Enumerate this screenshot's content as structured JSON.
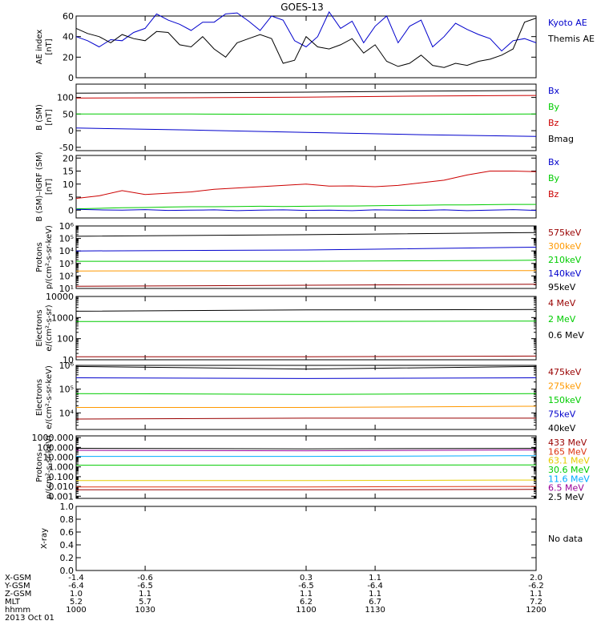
{
  "title": "GOES-13",
  "colors": {
    "black": "#000000",
    "blue": "#0000cc",
    "red": "#cc0000",
    "green": "#00cc00",
    "orange": "#ff9900",
    "darkred": "#990000",
    "cyan": "#00aaff",
    "yellow": "#e6cc00",
    "purple": "#990099",
    "salmon": "#dd3311"
  },
  "chart_data": [
    {
      "type": "line",
      "id": "ae",
      "ylabel": [
        "AE index",
        "[nT]"
      ],
      "ylim": [
        0,
        60
      ],
      "yticks": [
        0,
        20,
        40,
        60
      ],
      "scale": "linear",
      "xlim": [
        1000,
        1200
      ],
      "legend": [
        {
          "label": "Kyoto AE",
          "color": "#0000cc"
        },
        {
          "label": "Themis AE",
          "color": "#000000"
        }
      ],
      "series": [
        {
          "name": "Kyoto AE",
          "color": "#0000cc",
          "x": [
            1000,
            1005,
            1010,
            1015,
            1020,
            1025,
            1030,
            1035,
            1040,
            1045,
            1050,
            1055,
            1060,
            1065,
            1070,
            1075,
            1080,
            1085,
            1090,
            1095,
            1100,
            1105,
            1110,
            1115,
            1120,
            1125,
            1130,
            1135,
            1140,
            1145,
            1150,
            1155,
            1160,
            1165,
            1170,
            1175,
            1180,
            1185,
            1190,
            1195,
            1200
          ],
          "y": [
            40,
            36,
            30,
            37,
            36,
            44,
            48,
            62,
            56,
            52,
            46,
            54,
            54,
            62,
            63,
            55,
            46,
            60,
            56,
            36,
            30,
            40,
            64,
            48,
            55,
            34,
            50,
            60,
            34,
            50,
            56,
            30,
            40,
            53,
            47,
            42,
            38,
            26,
            36,
            38,
            34
          ]
        },
        {
          "name": "Themis AE",
          "color": "#000000",
          "x": [
            1000,
            1005,
            1010,
            1015,
            1020,
            1025,
            1030,
            1035,
            1040,
            1045,
            1050,
            1055,
            1060,
            1065,
            1070,
            1075,
            1080,
            1085,
            1090,
            1095,
            1100,
            1105,
            1110,
            1115,
            1120,
            1125,
            1130,
            1135,
            1140,
            1145,
            1150,
            1155,
            1160,
            1165,
            1170,
            1175,
            1180,
            1185,
            1190,
            1195,
            1200
          ],
          "y": [
            48,
            43,
            40,
            34,
            42,
            38,
            36,
            45,
            44,
            32,
            30,
            40,
            28,
            20,
            34,
            38,
            42,
            38,
            14,
            17,
            40,
            30,
            28,
            32,
            38,
            24,
            32,
            16,
            11,
            14,
            22,
            12,
            10,
            14,
            12,
            16,
            18,
            22,
            28,
            54,
            58
          ]
        }
      ]
    },
    {
      "type": "line",
      "id": "bsm",
      "ylabel": [
        "B (SM)",
        "[nT]"
      ],
      "ylim": [
        -60,
        140
      ],
      "yticks": [
        -50,
        0,
        50,
        100
      ],
      "scale": "linear",
      "xlim": [
        1000,
        1200
      ],
      "legend": [
        {
          "label": "Bx",
          "color": "#0000cc"
        },
        {
          "label": "By",
          "color": "#00cc00"
        },
        {
          "label": "Bz",
          "color": "#cc0000"
        },
        {
          "label": "Bmag",
          "color": "#000000"
        }
      ],
      "series": [
        {
          "name": "Bmag",
          "color": "#000000",
          "x": [
            1000,
            1050,
            1100,
            1150,
            1200
          ],
          "y": [
            113,
            114,
            116,
            119,
            121
          ]
        },
        {
          "name": "Bz",
          "color": "#cc0000",
          "x": [
            1000,
            1050,
            1100,
            1150,
            1200
          ],
          "y": [
            98,
            99,
            101,
            104,
            106
          ]
        },
        {
          "name": "By",
          "color": "#00cc00",
          "x": [
            1000,
            1050,
            1100,
            1150,
            1200
          ],
          "y": [
            50,
            50,
            49,
            49,
            50
          ]
        },
        {
          "name": "Bx",
          "color": "#0000cc",
          "x": [
            1000,
            1050,
            1100,
            1150,
            1200
          ],
          "y": [
            8,
            2,
            -5,
            -12,
            -17
          ]
        }
      ]
    },
    {
      "type": "line",
      "id": "bigrf",
      "ylabel": [
        "B (SM)–IGRF (SM)",
        "[nT]"
      ],
      "ylim": [
        -3,
        21
      ],
      "yticks": [
        0,
        5,
        10,
        15,
        20
      ],
      "scale": "linear",
      "xlim": [
        1000,
        1200
      ],
      "legend": [
        {
          "label": "Bx",
          "color": "#0000cc"
        },
        {
          "label": "By",
          "color": "#00cc00"
        },
        {
          "label": "Bz",
          "color": "#cc0000"
        }
      ],
      "series": [
        {
          "name": "Bz",
          "color": "#cc0000",
          "x": [
            1000,
            1010,
            1020,
            1030,
            1040,
            1050,
            1060,
            1070,
            1080,
            1090,
            1100,
            1110,
            1120,
            1130,
            1140,
            1150,
            1160,
            1170,
            1180,
            1190,
            1200
          ],
          "y": [
            4.5,
            5.5,
            7.5,
            6,
            6.5,
            7,
            8,
            8.5,
            9,
            9.5,
            10,
            9.2,
            9.3,
            9,
            9.5,
            10.5,
            11.5,
            13.5,
            15,
            15,
            14.8
          ]
        },
        {
          "name": "By",
          "color": "#00cc00",
          "x": [
            1000,
            1010,
            1020,
            1030,
            1040,
            1050,
            1060,
            1070,
            1080,
            1090,
            1100,
            1110,
            1120,
            1130,
            1140,
            1150,
            1160,
            1170,
            1180,
            1190,
            1200
          ],
          "y": [
            0.5,
            0.7,
            0.9,
            1,
            1.2,
            1.3,
            1.3,
            1.4,
            1.5,
            1.4,
            1.5,
            1.6,
            1.6,
            1.7,
            1.8,
            1.9,
            2,
            2,
            2.1,
            2.2,
            2.2
          ]
        },
        {
          "name": "Bx",
          "color": "#0000cc",
          "x": [
            1000,
            1010,
            1020,
            1030,
            1040,
            1050,
            1060,
            1070,
            1080,
            1090,
            1100,
            1110,
            1120,
            1130,
            1140,
            1150,
            1160,
            1170,
            1180,
            1190,
            1200
          ],
          "y": [
            0.3,
            0.1,
            0,
            0.2,
            -0.1,
            0,
            0.1,
            -0.2,
            0,
            0.1,
            -0.1,
            0,
            -0.2,
            0.1,
            0,
            -0.1,
            0.1,
            -0.2,
            0,
            0.2,
            -0.1
          ]
        }
      ]
    },
    {
      "type": "line",
      "id": "protons1",
      "ylabel": [
        "Protons",
        "p/(cm²-s-sr-keV)"
      ],
      "ylim": [
        10,
        1000000
      ],
      "yticks": [
        10,
        100,
        1000,
        10000,
        100000,
        1000000
      ],
      "yticklabels": [
        "10¹",
        "10²",
        "10³",
        "10⁴",
        "10⁵",
        "10⁶"
      ],
      "scale": "log",
      "xlim": [
        1000,
        1200
      ],
      "legend": [
        {
          "label": "575keV",
          "color": "#990000"
        },
        {
          "label": "300keV",
          "color": "#ff9900"
        },
        {
          "label": "210keV",
          "color": "#00cc00"
        },
        {
          "label": "140keV",
          "color": "#0000cc"
        },
        {
          "label": "95keV",
          "color": "#000000"
        }
      ],
      "series": [
        {
          "name": "95keV",
          "color": "#000000",
          "x": [
            1000,
            1100,
            1200
          ],
          "y": [
            150000,
            200000,
            300000
          ]
        },
        {
          "name": "140keV",
          "color": "#0000cc",
          "x": [
            1000,
            1100,
            1200
          ],
          "y": [
            10000,
            12000,
            20000
          ]
        },
        {
          "name": "210keV",
          "color": "#00cc00",
          "x": [
            1000,
            1100,
            1200
          ],
          "y": [
            1500,
            1500,
            1800
          ]
        },
        {
          "name": "300keV",
          "color": "#ff9900",
          "x": [
            1000,
            1100,
            1200
          ],
          "y": [
            250,
            260,
            270
          ]
        },
        {
          "name": "575keV",
          "color": "#990000",
          "x": [
            1000,
            1100,
            1200
          ],
          "y": [
            15,
            18,
            22
          ]
        }
      ]
    },
    {
      "type": "line",
      "id": "electrons1",
      "ylabel": [
        "Electrons",
        "e/(cm²-s-sr)"
      ],
      "ylim": [
        10,
        10000
      ],
      "yticks": [
        10,
        100,
        1000,
        10000
      ],
      "yticklabels": [
        "10",
        "100",
        "1000",
        "10000"
      ],
      "scale": "log",
      "xlim": [
        1000,
        1200
      ],
      "legend": [
        {
          "label": "4 MeV",
          "color": "#990000"
        },
        {
          "label": "2 MeV",
          "color": "#00cc00"
        },
        {
          "label": "0.6 MeV",
          "color": "#000000"
        }
      ],
      "series": [
        {
          "name": "0.6 MeV",
          "color": "#000000",
          "x": [
            1000,
            1100,
            1200
          ],
          "y": [
            2000,
            2300,
            2400
          ]
        },
        {
          "name": "2 MeV",
          "color": "#00cc00",
          "x": [
            1000,
            1100,
            1200
          ],
          "y": [
            650,
            650,
            680
          ]
        },
        {
          "name": "4 MeV",
          "color": "#990000",
          "x": [
            1000,
            1100,
            1200
          ],
          "y": [
            14,
            14,
            15
          ]
        }
      ]
    },
    {
      "type": "line",
      "id": "electrons2",
      "ylabel": [
        "Electrons",
        "e/(cm²-s-sr-keV)"
      ],
      "ylim": [
        2000,
        1000000
      ],
      "yticks": [
        10000,
        100000,
        1000000
      ],
      "yticklabels": [
        "10⁴",
        "10⁵",
        "10⁶"
      ],
      "scale": "log",
      "xlim": [
        1000,
        1200
      ],
      "legend": [
        {
          "label": "475keV",
          "color": "#990000"
        },
        {
          "label": "275keV",
          "color": "#ff9900"
        },
        {
          "label": "150keV",
          "color": "#00cc00"
        },
        {
          "label": "75keV",
          "color": "#0000cc"
        },
        {
          "label": "40keV",
          "color": "#000000"
        }
      ],
      "series": [
        {
          "name": "40keV",
          "color": "#000000",
          "x": [
            1000,
            1100,
            1200
          ],
          "y": [
            900000,
            700000,
            900000
          ]
        },
        {
          "name": "75keV",
          "color": "#0000cc",
          "x": [
            1000,
            1100,
            1200
          ],
          "y": [
            300000,
            280000,
            300000
          ]
        },
        {
          "name": "150keV",
          "color": "#00cc00",
          "x": [
            1000,
            1100,
            1200
          ],
          "y": [
            65000,
            60000,
            65000
          ]
        },
        {
          "name": "275keV",
          "color": "#ff9900",
          "x": [
            1000,
            1100,
            1200
          ],
          "y": [
            17000,
            17000,
            19000
          ]
        },
        {
          "name": "475keV",
          "color": "#990000",
          "x": [
            1000,
            1100,
            1200
          ],
          "y": [
            5500,
            6000,
            6000
          ]
        }
      ]
    },
    {
      "type": "line",
      "id": "protons2",
      "ylabel": [
        "Protons",
        "p/(cm²-s-sr-keV)"
      ],
      "ylim": [
        0.0006,
        1500
      ],
      "yticks": [
        0.001,
        0.01,
        0.1,
        1,
        10,
        100,
        1000
      ],
      "yticklabels": [
        "0.001",
        "0.010",
        "0.100",
        "1.000",
        "10.000",
        "100.000",
        "1000.000"
      ],
      "scale": "log",
      "xlim": [
        1000,
        1200
      ],
      "legend": [
        {
          "label": "433 MeV",
          "color": "#990000"
        },
        {
          "label": "165 MeV",
          "color": "#dd3311"
        },
        {
          "label": "63.1 MeV",
          "color": "#e6cc00"
        },
        {
          "label": "30.6 MeV",
          "color": "#00cc00"
        },
        {
          "label": "11.6 MeV",
          "color": "#00aaff"
        },
        {
          "label": "6.5 MeV",
          "color": "#990099"
        },
        {
          "label": "2.5 MeV",
          "color": "#000000"
        }
      ],
      "series": [
        {
          "name": "2.5 MeV",
          "color": "#000000",
          "x": [
            1000,
            1100,
            1200
          ],
          "y": [
            80,
            70,
            80
          ]
        },
        {
          "name": "6.5 MeV",
          "color": "#990099",
          "x": [
            1000,
            1100,
            1200
          ],
          "y": [
            50,
            45,
            55
          ]
        },
        {
          "name": "11.6 MeV",
          "color": "#00aaff",
          "x": [
            1000,
            1100,
            1200
          ],
          "y": [
            12,
            12,
            14
          ]
        },
        {
          "name": "30.6 MeV",
          "color": "#00cc00",
          "x": [
            1000,
            1100,
            1200
          ],
          "y": [
            1.5,
            1.5,
            1.6
          ]
        },
        {
          "name": "63.1 MeV",
          "color": "#e6cc00",
          "x": [
            1000,
            1100,
            1200
          ],
          "y": [
            0.04,
            0.04,
            0.045
          ]
        },
        {
          "name": "165 MeV",
          "color": "#dd3311",
          "x": [
            1000,
            1100,
            1200
          ],
          "y": [
            0.009,
            0.009,
            0.01
          ]
        },
        {
          "name": "433 MeV",
          "color": "#990000",
          "x": [
            1000,
            1100,
            1200
          ],
          "y": [
            0.0045,
            0.0045,
            0.005
          ]
        }
      ]
    },
    {
      "type": "line",
      "id": "xray",
      "ylabel": [
        "X-ray"
      ],
      "ylim": [
        0,
        1
      ],
      "yticks": [
        0,
        0.2,
        0.4,
        0.6,
        0.8,
        1.0
      ],
      "yticklabels": [
        "0.0",
        "0.2",
        "0.4",
        "0.6",
        "0.8",
        "1.0"
      ],
      "scale": "linear",
      "xlim": [
        1000,
        1200
      ],
      "legend": [
        {
          "label": "No data",
          "color": "#000000"
        }
      ],
      "series": []
    }
  ],
  "xaxis": {
    "ticks": [
      1000,
      1030,
      1100,
      1130,
      1200
    ],
    "rows": [
      {
        "label": "X-GSM",
        "values": [
          "-1.4",
          "-0.6",
          "0.3",
          "1.1",
          "2.0"
        ]
      },
      {
        "label": "Y-GSM",
        "values": [
          "-6.4",
          "-6.5",
          "-6.5",
          "-6.4",
          "-6.2"
        ]
      },
      {
        "label": "Z-GSM",
        "values": [
          "1.0",
          "1.1",
          "1.1",
          "1.1",
          "1.1"
        ]
      },
      {
        "label": "MLT",
        "values": [
          "5.2",
          "5.7",
          "6.2",
          "6.7",
          "7.2"
        ]
      },
      {
        "label": "hhmm",
        "values": [
          "1000",
          "1030",
          "1100",
          "1130",
          "1200"
        ]
      }
    ],
    "date": "2013 Oct 01"
  }
}
